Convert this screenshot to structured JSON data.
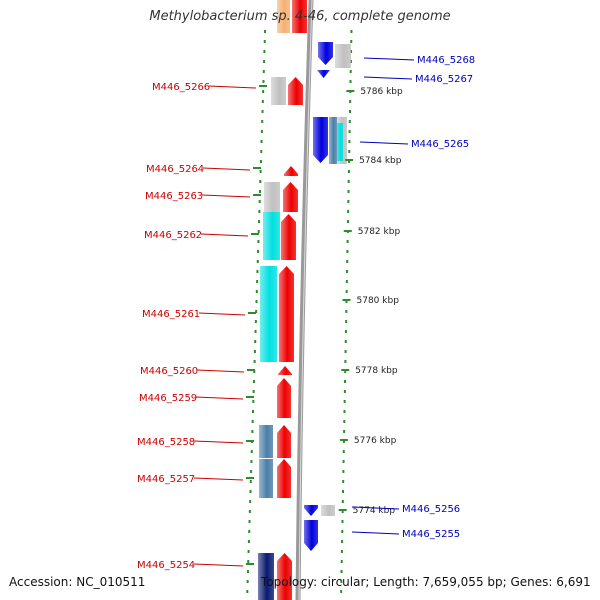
{
  "title": "Methylobacterium sp. 4-46, complete genome",
  "accession_text": "Accession: NC_010511",
  "info_text": "Topology: circular; Length: 7,659,055 bp; Genes: 6,691",
  "colors": {
    "reverse_label": "#cc0000",
    "forward_label": "#0000bb",
    "backbone": "#999999",
    "tick": "#2e8b2e",
    "cds_red": "#ee0000",
    "cds_blue": "#0000dd",
    "cyan": "#00e0e0",
    "steel": "#4a7fa8",
    "navy": "#0a1a70",
    "gray": "#c0c0c0",
    "orange": "#f5b070"
  },
  "scale_labels": [
    "5786 kbp",
    "5784 kbp",
    "5782 kbp",
    "5780 kbp",
    "5778 kbp",
    "5776 kbp",
    "5774 kbp"
  ],
  "genes_reverse": [
    "M446_5266",
    "M446_5264",
    "M446_5263",
    "M446_5262",
    "M446_5261",
    "M446_5260",
    "M446_5259",
    "M446_5258",
    "M446_5257",
    "M446_5254"
  ],
  "genes_forward": [
    "M446_5268",
    "M446_5267",
    "M446_5265",
    "M446_5256",
    "M446_5255"
  ]
}
